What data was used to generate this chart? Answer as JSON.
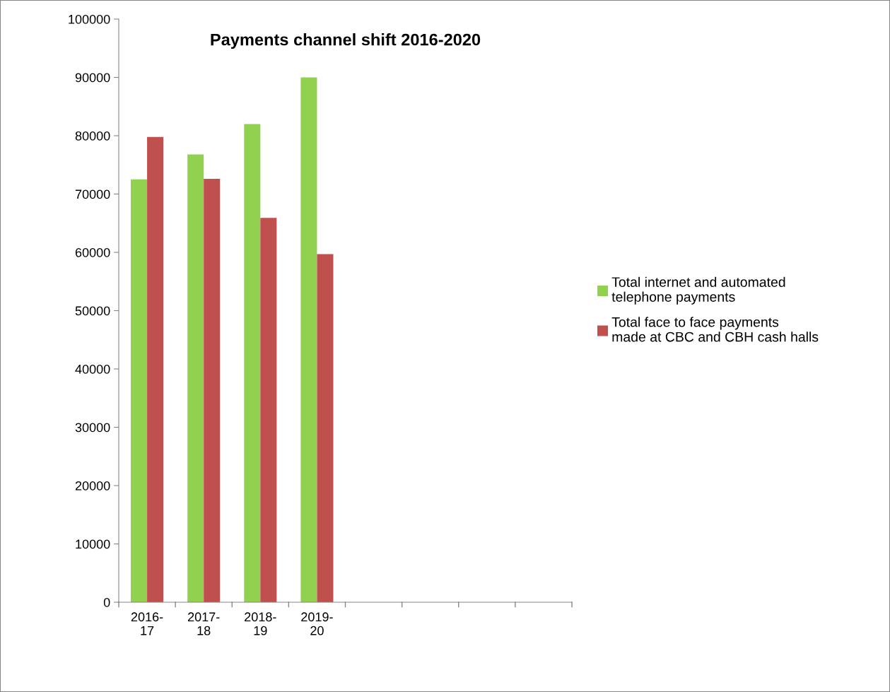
{
  "chart_data": {
    "type": "bar",
    "title": "Payments channel shift 2016-2020",
    "categories": [
      "2016-17",
      "2017-18",
      "2018-19",
      "2019-20",
      null,
      null,
      null,
      null
    ],
    "series": [
      {
        "name": "Total internet and automated telephone payments",
        "color": "#92d050",
        "values": [
          72500,
          76800,
          82000,
          90000,
          null,
          null,
          null,
          null
        ]
      },
      {
        "name": "Total face to face payments made at CBC and CBH cash halls",
        "color": "#c0504d",
        "values": [
          79800,
          72600,
          65900,
          59700,
          null,
          null,
          null,
          null
        ]
      }
    ],
    "ylim": [
      0,
      100000
    ],
    "yticks": [
      0,
      10000,
      20000,
      30000,
      40000,
      50000,
      60000,
      70000,
      80000,
      90000,
      100000
    ],
    "grid": false,
    "legend": "right"
  }
}
